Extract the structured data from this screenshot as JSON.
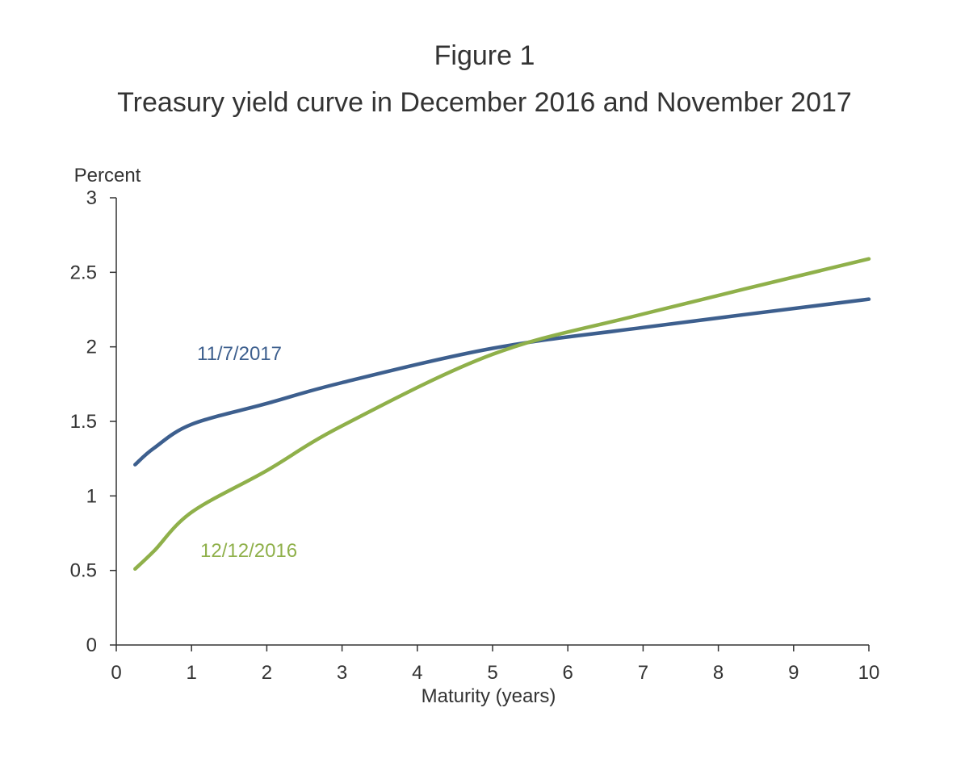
{
  "figure": {
    "label": "Figure 1",
    "title": "Treasury yield curve in December 2016 and November 2017"
  },
  "chart_data": {
    "type": "line",
    "ylabel": "Percent",
    "xlabel": "Maturity (years)",
    "xlim": [
      0,
      10
    ],
    "ylim": [
      0,
      3
    ],
    "x_ticks": [
      0,
      1,
      2,
      3,
      4,
      5,
      6,
      7,
      8,
      9,
      10
    ],
    "y_ticks": [
      0,
      0.5,
      1,
      1.5,
      2,
      2.5,
      3
    ],
    "grid": false,
    "series": [
      {
        "name": "11/7/2017",
        "color": "#3d5f8e",
        "x": [
          0.25,
          0.5,
          1,
          2,
          3,
          5,
          7,
          10
        ],
        "y": [
          1.21,
          1.32,
          1.48,
          1.62,
          1.76,
          1.99,
          2.13,
          2.32
        ]
      },
      {
        "name": "12/12/2016",
        "color": "#8fb04a",
        "x": [
          0.25,
          0.5,
          1,
          2,
          3,
          5,
          7,
          10
        ],
        "y": [
          0.51,
          0.63,
          0.89,
          1.17,
          1.47,
          1.95,
          2.22,
          2.59
        ]
      }
    ]
  }
}
